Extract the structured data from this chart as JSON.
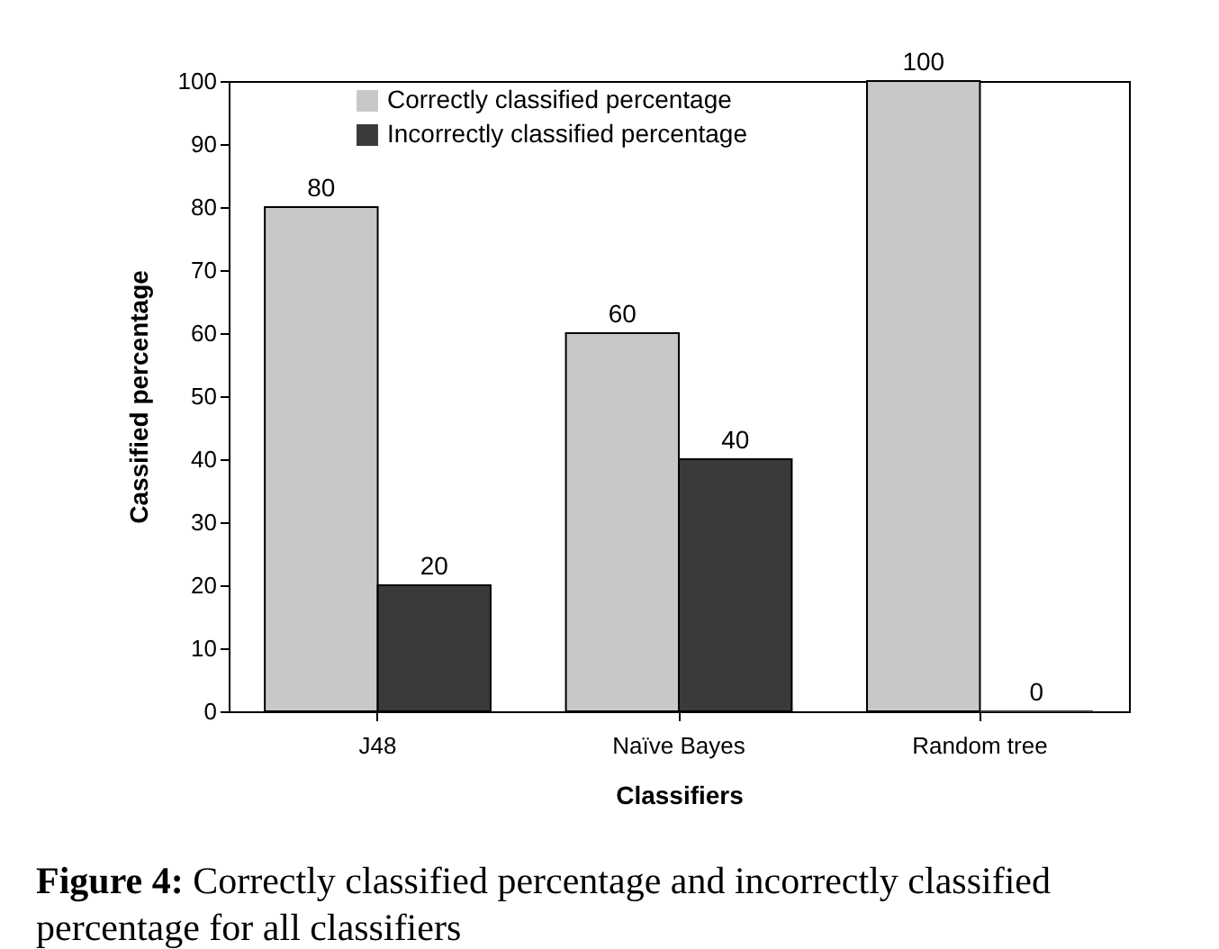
{
  "chart_data": {
    "type": "bar",
    "xlabel": "Classifiers",
    "ylabel": "Cassified percentage",
    "categories": [
      "J48",
      "Naïve Bayes",
      "Random tree"
    ],
    "series": [
      {
        "name": "Correctly classified percentage",
        "color": "#c8c8c8",
        "values": [
          80,
          60,
          100
        ]
      },
      {
        "name": "Incorrectly classified percentage",
        "color": "#3a3a3a",
        "values": [
          20,
          40,
          0
        ]
      }
    ],
    "ylim": [
      0,
      100
    ],
    "yticks": [
      0,
      10,
      20,
      30,
      40,
      50,
      60,
      70,
      80,
      90,
      100
    ],
    "grid": false,
    "legend": "top",
    "data_labels": true,
    "annotations": [
      "Figure 4: Correctly classified percentage and incorrectly classified percentage for all classifiers"
    ]
  }
}
